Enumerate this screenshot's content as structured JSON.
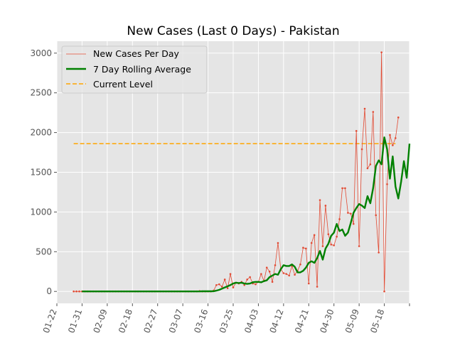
{
  "chart_data": {
    "type": "line",
    "title": "New Cases (Last 0 Days) - Pakistan",
    "xlabel": "",
    "ylabel": "",
    "x_range": [
      "2020-01-22",
      "2020-05-27"
    ],
    "x_ticks": [
      "01-22",
      "01-31",
      "02-09",
      "02-18",
      "02-27",
      "03-07",
      "03-16",
      "03-25",
      "04-03",
      "04-12",
      "04-21",
      "04-30",
      "05-09",
      "05-18",
      ""
    ],
    "y_ticks": [
      0,
      500,
      1000,
      1500,
      2000,
      2500,
      3000
    ],
    "ylim": [
      -150,
      3150
    ],
    "grid": true,
    "legend_position": "top-left",
    "colors": {
      "daily": "#E24A33",
      "rolling": "#008000",
      "current": "#FFA500",
      "plot_bg": "#E5E5E5",
      "grid": "#FFFFFF"
    },
    "series": [
      {
        "name": "New Cases Per Day",
        "style": "thin line with point markers",
        "start_date": "2020-01-28",
        "values": [
          0,
          0,
          0,
          0,
          0,
          0,
          0,
          0,
          0,
          0,
          0,
          0,
          0,
          0,
          0,
          0,
          0,
          0,
          0,
          0,
          0,
          0,
          0,
          0,
          0,
          0,
          0,
          0,
          0,
          0,
          0,
          0,
          0,
          0,
          0,
          0,
          0,
          0,
          0,
          0,
          0,
          0,
          0,
          0,
          0,
          5,
          0,
          0,
          0,
          0,
          10,
          80,
          90,
          60,
          150,
          40,
          220,
          50,
          110,
          100,
          120,
          80,
          150,
          180,
          100,
          90,
          120,
          220,
          130,
          300,
          250,
          120,
          330,
          610,
          280,
          230,
          220,
          200,
          320,
          210,
          260,
          340,
          550,
          540,
          100,
          610,
          710,
          60,
          1150,
          570,
          1080,
          720,
          590,
          580,
          690,
          910,
          1300,
          1300,
          990,
          980,
          850,
          2020,
          570,
          1790,
          2300,
          1550,
          1600,
          2260,
          960,
          490,
          3010,
          0,
          1350,
          1970,
          1840,
          1930,
          2190
        ]
      },
      {
        "name": "7 Day Rolling Average",
        "style": "thick line",
        "start_date": "2020-01-31",
        "values": [
          0,
          0,
          0,
          0,
          0,
          0,
          0,
          0,
          0,
          0,
          0,
          0,
          0,
          0,
          0,
          0,
          0,
          0,
          0,
          0,
          0,
          0,
          0,
          0,
          0,
          0,
          0,
          0,
          0,
          0,
          0,
          0,
          0,
          0,
          0,
          0,
          0,
          0,
          0,
          0,
          0,
          0,
          0,
          2,
          2,
          2,
          2,
          3,
          10,
          20,
          35,
          50,
          65,
          80,
          100,
          110,
          105,
          110,
          100,
          95,
          100,
          115,
          120,
          120,
          115,
          130,
          140,
          180,
          200,
          220,
          210,
          280,
          330,
          320,
          320,
          340,
          310,
          240,
          240,
          260,
          300,
          360,
          380,
          360,
          420,
          510,
          400,
          540,
          600,
          700,
          740,
          850,
          760,
          780,
          700,
          740,
          860,
          990,
          1050,
          1100,
          1080,
          1050,
          1200,
          1110,
          1300,
          1580,
          1650,
          1600,
          1940,
          1790,
          1420,
          1700,
          1320,
          1170,
          1380,
          1640,
          1430,
          1860
        ]
      },
      {
        "name": "Current Level",
        "style": "dashed horizontal line",
        "value": 1860,
        "from": "2020-01-28",
        "to": "2020-05-22"
      }
    ]
  }
}
